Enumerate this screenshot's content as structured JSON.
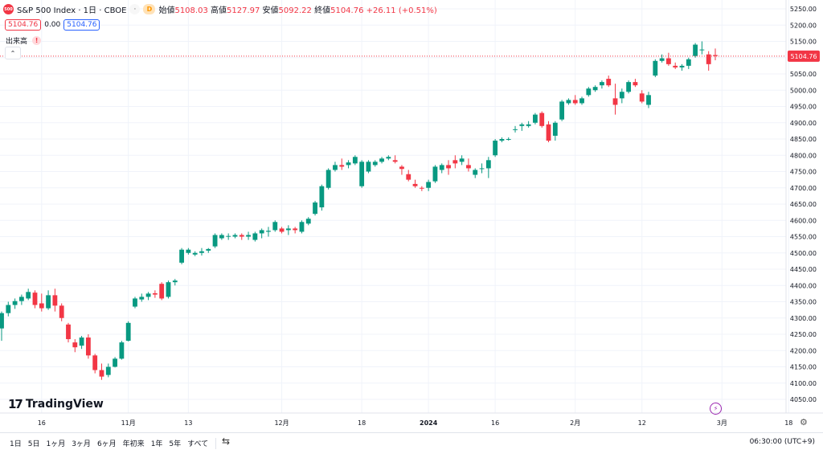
{
  "legend": {
    "symbol_badge": "500",
    "title": "S&P 500 Index · 1日 · CBOE",
    "interval_badge": "D",
    "open_label": "始値",
    "open": "5108.03",
    "high_label": "高値",
    "high": "5127.97",
    "low_label": "安値",
    "low": "5092.22",
    "close_label": "終値",
    "close": "5104.76",
    "change": "+26.11 (+0.51%)"
  },
  "price_box_1": "5104.76",
  "price_box_mid": "0.00",
  "price_box_2": "5104.76",
  "volume_label": "出来高",
  "volume_warning": "!",
  "collapse_icon": "chevron-up-icon",
  "logo_text": "TradingView",
  "logo_mark": "17",
  "colors": {
    "up": "#089981",
    "down": "#f23645",
    "grid": "#f0f3fa",
    "last_price": "#f23645"
  },
  "bottom": {
    "ranges": [
      "1日",
      "5日",
      "1ヶ月",
      "3ヶ月",
      "6ヶ月",
      "年初来",
      "1年",
      "5年",
      "すべて"
    ],
    "time": "06:30:00 (UTC+9)"
  },
  "chart_data": {
    "type": "candlestick",
    "ylim": [
      4050,
      5250
    ],
    "y_ticks": [
      4050,
      4100,
      4150,
      4200,
      4250,
      4300,
      4350,
      4400,
      4450,
      4500,
      4550,
      4600,
      4650,
      4700,
      4750,
      4800,
      4850,
      4900,
      4950,
      5000,
      5050,
      5100,
      5150,
      5200,
      5250
    ],
    "x_ticks": [
      "16",
      "11月",
      "13",
      "12月",
      "18",
      "2024",
      "16",
      "2月",
      "12",
      "3月",
      "18"
    ],
    "last_price": 5104.76,
    "candles": [
      [
        4268,
        4320,
        4230,
        4315
      ],
      [
        4315,
        4350,
        4305,
        4340
      ],
      [
        4340,
        4360,
        4328,
        4352
      ],
      [
        4352,
        4372,
        4340,
        4365
      ],
      [
        4360,
        4390,
        4355,
        4380
      ],
      [
        4378,
        4385,
        4330,
        4340
      ],
      [
        4345,
        4375,
        4320,
        4330
      ],
      [
        4330,
        4385,
        4325,
        4370
      ],
      [
        4370,
        4390,
        4320,
        4338
      ],
      [
        4338,
        4345,
        4290,
        4300
      ],
      [
        4280,
        4285,
        4225,
        4235
      ],
      [
        4225,
        4235,
        4195,
        4210
      ],
      [
        4215,
        4245,
        4205,
        4240
      ],
      [
        4240,
        4250,
        4175,
        4185
      ],
      [
        4185,
        4190,
        4130,
        4140
      ],
      [
        4140,
        4160,
        4110,
        4120
      ],
      [
        4125,
        4160,
        4118,
        4150
      ],
      [
        4150,
        4180,
        4148,
        4175
      ],
      [
        4175,
        4230,
        4172,
        4225
      ],
      [
        4230,
        4290,
        4228,
        4285
      ],
      [
        4335,
        4365,
        4330,
        4360
      ],
      [
        4357,
        4375,
        4350,
        4365
      ],
      [
        4365,
        4380,
        4355,
        4375
      ],
      [
        4376,
        4385,
        4362,
        4372
      ],
      [
        4405,
        4410,
        4355,
        4360
      ],
      [
        4365,
        4415,
        4360,
        4410
      ],
      [
        4410,
        4420,
        4400,
        4415
      ],
      [
        4470,
        4515,
        4465,
        4510
      ],
      [
        4500,
        4515,
        4495,
        4510
      ],
      [
        4495,
        4505,
        4490,
        4500
      ],
      [
        4500,
        4515,
        4492,
        4505
      ],
      [
        4507,
        4515,
        4500,
        4512
      ],
      [
        4520,
        4560,
        4515,
        4555
      ],
      [
        4545,
        4560,
        4540,
        4555
      ],
      [
        4550,
        4560,
        4540,
        4552
      ],
      [
        4550,
        4560,
        4545,
        4555
      ],
      [
        4555,
        4560,
        4540,
        4550
      ],
      [
        4550,
        4565,
        4540,
        4555
      ],
      [
        4540,
        4565,
        4535,
        4560
      ],
      [
        4560,
        4575,
        4545,
        4570
      ],
      [
        4565,
        4580,
        4550,
        4568
      ],
      [
        4570,
        4600,
        4565,
        4595
      ],
      [
        4575,
        4580,
        4560,
        4565
      ],
      [
        4570,
        4585,
        4555,
        4575
      ],
      [
        4575,
        4580,
        4560,
        4570
      ],
      [
        4565,
        4600,
        4560,
        4595
      ],
      [
        4590,
        4610,
        4585,
        4605
      ],
      [
        4620,
        4660,
        4615,
        4655
      ],
      [
        4640,
        4710,
        4630,
        4705
      ],
      [
        4700,
        4760,
        4695,
        4755
      ],
      [
        4755,
        4780,
        4750,
        4770
      ],
      [
        4770,
        4790,
        4755,
        4765
      ],
      [
        4770,
        4785,
        4760,
        4778
      ],
      [
        4775,
        4800,
        4770,
        4795
      ],
      [
        4705,
        4785,
        4700,
        4780
      ],
      [
        4750,
        4785,
        4745,
        4780
      ],
      [
        4770,
        4785,
        4765,
        4780
      ],
      [
        4780,
        4795,
        4775,
        4790
      ],
      [
        4790,
        4800,
        4785,
        4795
      ],
      [
        4785,
        4800,
        4775,
        4780
      ],
      [
        4765,
        4770,
        4740,
        4758
      ],
      [
        4742,
        4755,
        4720,
        4725
      ],
      [
        4712,
        4725,
        4700,
        4705
      ],
      [
        4700,
        4705,
        4690,
        4698
      ],
      [
        4700,
        4725,
        4690,
        4718
      ],
      [
        4720,
        4770,
        4715,
        4765
      ],
      [
        4755,
        4775,
        4745,
        4770
      ],
      [
        4770,
        4785,
        4740,
        4760
      ],
      [
        4785,
        4800,
        4760,
        4775
      ],
      [
        4780,
        4800,
        4770,
        4790
      ],
      [
        4770,
        4790,
        4750,
        4760
      ],
      [
        4740,
        4760,
        4730,
        4755
      ],
      [
        4760,
        4775,
        4745,
        4760
      ],
      [
        4760,
        4795,
        4730,
        4785
      ],
      [
        4800,
        4850,
        4795,
        4845
      ],
      [
        4845,
        4855,
        4840,
        4850
      ],
      [
        4850,
        4855,
        4845,
        4850
      ],
      [
        4880,
        4890,
        4870,
        4880
      ],
      [
        4890,
        4900,
        4875,
        4895
      ],
      [
        4890,
        4905,
        4885,
        4895
      ],
      [
        4900,
        4930,
        4895,
        4925
      ],
      [
        4930,
        4935,
        4885,
        4890
      ],
      [
        4895,
        4905,
        4840,
        4845
      ],
      [
        4860,
        4905,
        4845,
        4900
      ],
      [
        4910,
        4970,
        4905,
        4965
      ],
      [
        4960,
        4975,
        4955,
        4970
      ],
      [
        4970,
        4985,
        4955,
        4960
      ],
      [
        4960,
        4980,
        4955,
        4975
      ],
      [
        4985,
        5010,
        4980,
        5005
      ],
      [
        5000,
        5015,
        4995,
        5010
      ],
      [
        5015,
        5030,
        5005,
        5025
      ],
      [
        5035,
        5045,
        5010,
        5015
      ],
      [
        4975,
        5020,
        4925,
        4955
      ],
      [
        4975,
        5005,
        4960,
        4995
      ],
      [
        4995,
        5030,
        4990,
        5025
      ],
      [
        5025,
        5035,
        5010,
        5015
      ],
      [
        4990,
        5000,
        4960,
        4965
      ],
      [
        4955,
        4995,
        4945,
        4985
      ],
      [
        5045,
        5095,
        5040,
        5090
      ],
      [
        5090,
        5110,
        5085,
        5098
      ],
      [
        5098,
        5115,
        5075,
        5080
      ],
      [
        5075,
        5085,
        5065,
        5070
      ],
      [
        5070,
        5080,
        5060,
        5075
      ],
      [
        5075,
        5100,
        5065,
        5095
      ],
      [
        5105,
        5145,
        5100,
        5140
      ],
      [
        5125,
        5150,
        5110,
        5125
      ],
      [
        5110,
        5120,
        5060,
        5080
      ],
      [
        5108,
        5128,
        5092,
        5105
      ]
    ]
  }
}
